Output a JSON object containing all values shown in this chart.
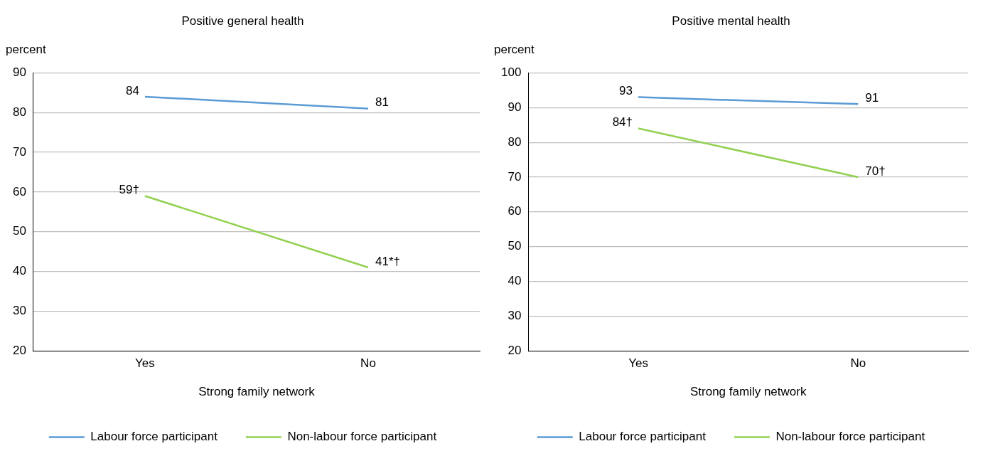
{
  "chart_data": [
    {
      "type": "line",
      "title": "Positive general health",
      "ylabel": "percent",
      "xlabel": "Strong family network",
      "categories": [
        "Yes",
        "No"
      ],
      "ylim": [
        20,
        90
      ],
      "yticks": [
        20,
        30,
        40,
        50,
        60,
        70,
        80,
        90
      ],
      "grid": "y",
      "legend": "bottom",
      "marker": "none",
      "line_style": "solid",
      "series": [
        {
          "name": "Labour force participant",
          "color": "#5b9bd5",
          "values": [
            84,
            81
          ],
          "value_labels": [
            "84",
            "81"
          ]
        },
        {
          "name": "Non-labour force participant",
          "color": "#92d050",
          "values": [
            59,
            41
          ],
          "value_labels": [
            "59†",
            "41*†"
          ]
        }
      ]
    },
    {
      "type": "line",
      "title": "Positive mental health",
      "ylabel": "percent",
      "xlabel": "Strong family network",
      "categories": [
        "Yes",
        "No"
      ],
      "ylim": [
        20,
        100
      ],
      "yticks": [
        20,
        30,
        40,
        50,
        60,
        70,
        80,
        90,
        100
      ],
      "grid": "y",
      "legend": "bottom",
      "marker": "none",
      "line_style": "solid",
      "series": [
        {
          "name": "Labour force participant",
          "color": "#5b9bd5",
          "values": [
            93,
            91
          ],
          "value_labels": [
            "93",
            "91"
          ]
        },
        {
          "name": "Non-labour force participant",
          "color": "#92d050",
          "values": [
            84,
            70
          ],
          "value_labels": [
            "84†",
            "70†"
          ]
        }
      ]
    }
  ]
}
